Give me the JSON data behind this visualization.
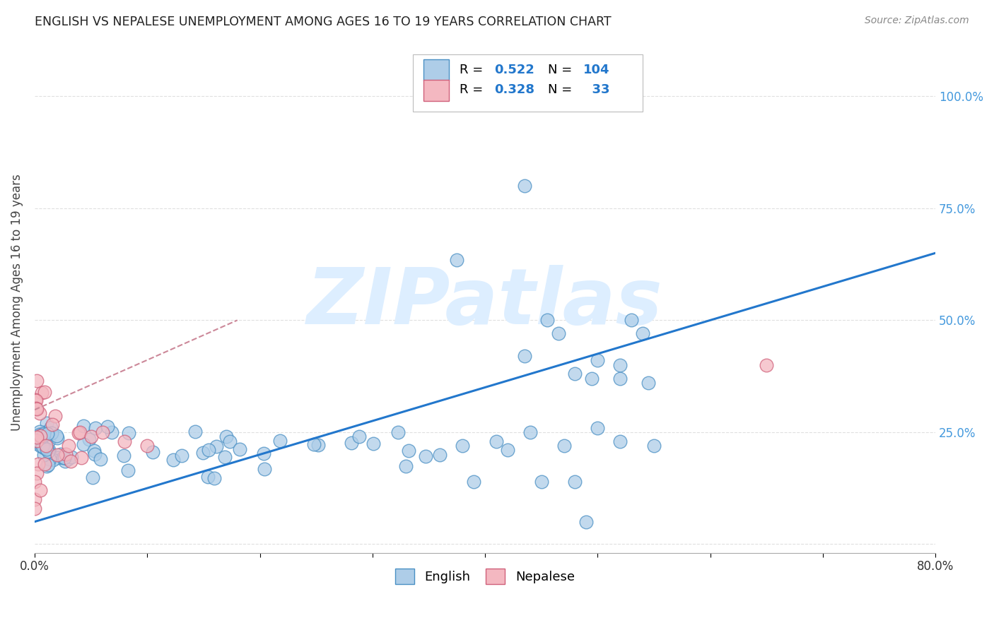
{
  "title": "ENGLISH VS NEPALESE UNEMPLOYMENT AMONG AGES 16 TO 19 YEARS CORRELATION CHART",
  "source": "Source: ZipAtlas.com",
  "ylabel": "Unemployment Among Ages 16 to 19 years",
  "xlim": [
    0.0,
    0.8
  ],
  "ylim": [
    -0.02,
    1.1
  ],
  "y_ticks": [
    0.0,
    0.25,
    0.5,
    0.75,
    1.0
  ],
  "english_R": 0.522,
  "english_N": 104,
  "nepalese_R": 0.328,
  "nepalese_N": 33,
  "english_color": "#aecde8",
  "nepalese_color": "#f4b8c1",
  "english_edge_color": "#4a90c4",
  "nepalese_edge_color": "#d0607a",
  "english_line_color": "#2277cc",
  "nepalese_line_color": "#cc8899",
  "watermark": "ZIPatlas",
  "watermark_color": "#ddeeff",
  "background_color": "#ffffff",
  "grid_color": "#dddddd",
  "title_color": "#222222",
  "axis_label_color": "#444444",
  "right_tick_color": "#4499dd",
  "legend_english_label": "English",
  "legend_nepalese_label": "Nepalese",
  "english_line_y0": 0.05,
  "english_line_y1": 0.65,
  "nepalese_line_x0": 0.0,
  "nepalese_line_x1": 0.18,
  "nepalese_line_y0": 0.3,
  "nepalese_line_y1": 0.5
}
